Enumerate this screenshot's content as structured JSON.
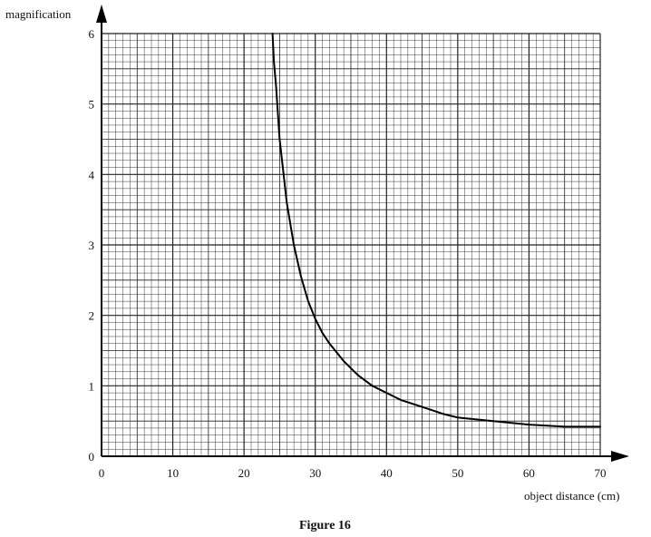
{
  "chart_data": {
    "type": "line",
    "title": "",
    "caption": "Figure 16",
    "xlabel": "object distance (cm)",
    "ylabel": "magnification",
    "xlim": [
      0,
      70
    ],
    "ylim": [
      0,
      6
    ],
    "xticks": [
      0,
      10,
      20,
      30,
      40,
      50,
      60,
      70
    ],
    "yticks": [
      0,
      1,
      2,
      3,
      4,
      5,
      6
    ],
    "grid": true,
    "series": [
      {
        "x": [
          24.0,
          24.2,
          24.5,
          25,
          26,
          27,
          28,
          29,
          30,
          31,
          32,
          34,
          36,
          38,
          40,
          42,
          45,
          48,
          50,
          55,
          60,
          65,
          70
        ],
        "y": [
          6.0,
          5.6,
          5.25,
          4.5,
          3.6,
          3.0,
          2.55,
          2.2,
          1.95,
          1.75,
          1.6,
          1.35,
          1.15,
          1.0,
          0.9,
          0.8,
          0.7,
          0.6,
          0.55,
          0.5,
          0.45,
          0.42,
          0.42
        ]
      }
    ]
  }
}
